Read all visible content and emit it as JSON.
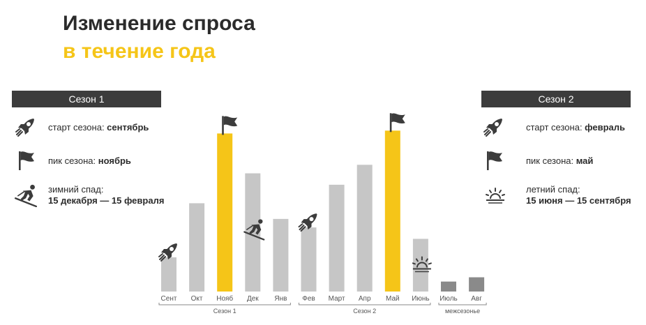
{
  "title": {
    "line1": "Изменение спроса",
    "line2": "в течение года"
  },
  "colors": {
    "accent": "#f5c518",
    "bar": "#c6c6c6",
    "bar_dark": "#8a8a8a",
    "dark": "#3c3c3c"
  },
  "season1": {
    "header": "Сезон 1",
    "start_label": "старт сезона: ",
    "start_value": "сентябрь",
    "peak_label": "пик сезона: ",
    "peak_value": "ноябрь",
    "slump_label": "зимний спад:",
    "slump_value": "15 декабря — 15 февраля"
  },
  "season2": {
    "header": "Сезон 2",
    "start_label": "старт сезона: ",
    "start_value": "февраль",
    "peak_label": "пик сезона: ",
    "peak_value": "май",
    "slump_label": "летний спад:",
    "slump_value": "15 июня — 15 сентября"
  },
  "icons": [
    "rocket-icon",
    "flag-icon",
    "skier-icon",
    "sunset-icon"
  ],
  "chart_data": {
    "type": "bar",
    "categories": [
      "Сент",
      "Окт",
      "Нояб",
      "Дек",
      "Янв",
      "Фев",
      "Март",
      "Апр",
      "Май",
      "Июнь",
      "Июль",
      "Авг"
    ],
    "values": [
      24,
      62,
      111,
      83,
      51,
      45,
      75,
      89,
      113,
      37,
      7,
      10
    ],
    "ylim": [
      0,
      120
    ],
    "highlight": [
      "Нояб",
      "Май"
    ],
    "offseason": [
      "Июль",
      "Авг"
    ],
    "groups": [
      {
        "label": "Сезон 1",
        "categories": [
          "Сент",
          "Окт",
          "Нояб",
          "Дек",
          "Янв"
        ]
      },
      {
        "label": "Сезон 2",
        "categories": [
          "Фев",
          "Март",
          "Апр",
          "Май",
          "Июнь"
        ]
      },
      {
        "label": "межсезонье",
        "categories": [
          "Июль",
          "Авг"
        ]
      }
    ],
    "markers": [
      {
        "category": "Сент",
        "icon": "rocket-icon"
      },
      {
        "category": "Нояб",
        "icon": "flag-icon"
      },
      {
        "category": "Дек",
        "icon": "skier-icon"
      },
      {
        "category": "Фев",
        "icon": "rocket-icon"
      },
      {
        "category": "Май",
        "icon": "flag-icon"
      },
      {
        "category": "Июнь",
        "icon": "sunset-icon"
      }
    ]
  }
}
